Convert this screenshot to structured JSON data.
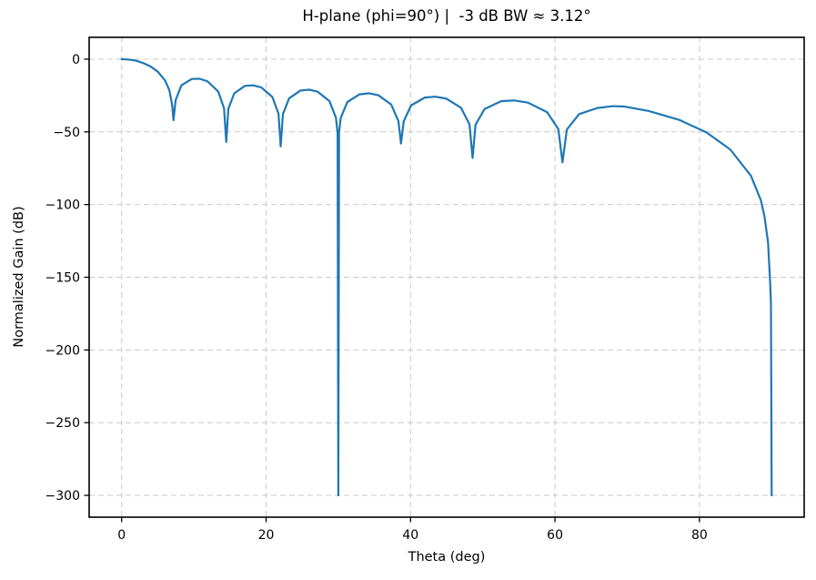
{
  "figure": {
    "background": "#ffffff"
  },
  "chart_data": {
    "type": "line",
    "title": "H-plane (phi=90°) |  -3 dB BW ≈ 3.12°",
    "xlabel": "Theta (deg)",
    "ylabel": "Normalized Gain (dB)",
    "xlim": [
      -4.5,
      94.5
    ],
    "ylim": [
      -315,
      15
    ],
    "xticks": {
      "values": [
        0,
        20,
        40,
        60,
        80
      ],
      "labels": [
        "0",
        "20",
        "40",
        "60",
        "80"
      ]
    },
    "yticks": {
      "values": [
        0,
        -50,
        -100,
        -150,
        -200,
        -250,
        -300
      ],
      "labels": [
        "0",
        "−50",
        "−100",
        "−150",
        "−200",
        "−250",
        "−300"
      ]
    },
    "grid": true,
    "grid_style": "dashed",
    "grid_color": "#c9c9c9",
    "line_color": "#1f77b4",
    "line_width": 2.2,
    "legend": "none",
    "series": [
      {
        "name": "normalized-gain-curve",
        "x": [
          0,
          1,
          2,
          3,
          4,
          5,
          6,
          6.6,
          7.0,
          7.18,
          7.47,
          8.27,
          9.72,
          10.81,
          11.9,
          13.37,
          14.18,
          14.48,
          14.77,
          15.59,
          17.08,
          18.21,
          19.34,
          20.87,
          21.72,
          22.02,
          22.33,
          23.19,
          24.76,
          25.94,
          27.14,
          28.77,
          29.67,
          29.9,
          30.0,
          30.1,
          30.33,
          31.25,
          32.94,
          34.23,
          35.54,
          37.32,
          38.32,
          38.68,
          39.05,
          40.08,
          41.98,
          43.43,
          44.93,
          47.0,
          48.16,
          48.59,
          49.0,
          50.25,
          52.54,
          54.34,
          56.25,
          58.91,
          60.46,
          61.04,
          61.64,
          63.34,
          65.86,
          68.0,
          69.64,
          73.0,
          77.16,
          80.94,
          84.26,
          87.13,
          88.5,
          89.0,
          89.5,
          89.8,
          89.9,
          90.0
        ],
        "y": [
          0,
          -0.3,
          -1.1,
          -2.7,
          -5.0,
          -8.6,
          -14.6,
          -21.2,
          -31.8,
          -42,
          -28.3,
          -18.0,
          -13.6,
          -13.5,
          -15.3,
          -22.2,
          -33.9,
          -57,
          -34.2,
          -23.5,
          -18.4,
          -18.0,
          -19.5,
          -26.0,
          -37.6,
          -60,
          -37.8,
          -26.9,
          -21.6,
          -21.0,
          -22.4,
          -28.8,
          -40.3,
          -50.7,
          -300,
          -50.5,
          -40.5,
          -29.5,
          -24.2,
          -23.5,
          -24.8,
          -31.2,
          -42.6,
          -58,
          -42.8,
          -31.8,
          -26.4,
          -25.8,
          -27.1,
          -33.5,
          -44.9,
          -68,
          -45.1,
          -34.3,
          -28.9,
          -28.4,
          -29.9,
          -36.5,
          -48.1,
          -71,
          -48.4,
          -37.8,
          -33.6,
          -32.3,
          -32.6,
          -35.7,
          -41.7,
          -50.3,
          -62.1,
          -80.2,
          -97,
          -108,
          -126,
          -155,
          -168,
          -300
        ]
      }
    ],
    "nulls_deg": [
      7.18,
      14.48,
      22.02,
      30.0,
      38.68,
      48.59,
      61.04,
      90.0
    ],
    "floor_db": -300
  }
}
